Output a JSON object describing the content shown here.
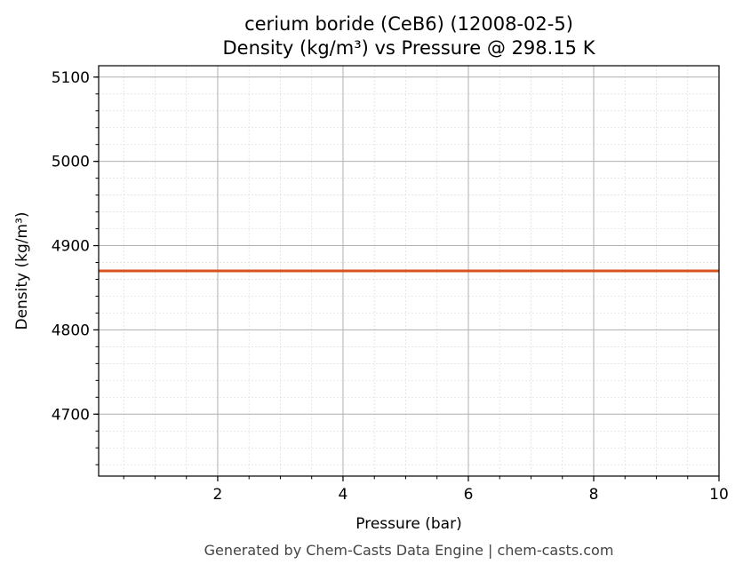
{
  "chart_data": {
    "type": "line",
    "title": "cerium boride (CeB6) (12008-02-5)",
    "subtitle": "Density (kg/m³) vs Pressure @ 298.15 K",
    "xlabel": "Pressure (bar)",
    "ylabel": "Density (kg/m³)",
    "xlim": [
      0.1,
      10
    ],
    "ylim": [
      4626.5,
      5113.5
    ],
    "xticks": [
      2,
      4,
      6,
      8,
      10
    ],
    "yticks": [
      4700,
      4800,
      4900,
      5000,
      5100
    ],
    "x_minor_step": 0.5,
    "y_minor_step": 20,
    "grid": true,
    "series": [
      {
        "x": [
          0.1,
          10
        ],
        "y": [
          4870,
          4870
        ],
        "color": "#d9531e"
      }
    ],
    "footer": "Generated by Chem-Casts Data Engine | chem-casts.com"
  }
}
